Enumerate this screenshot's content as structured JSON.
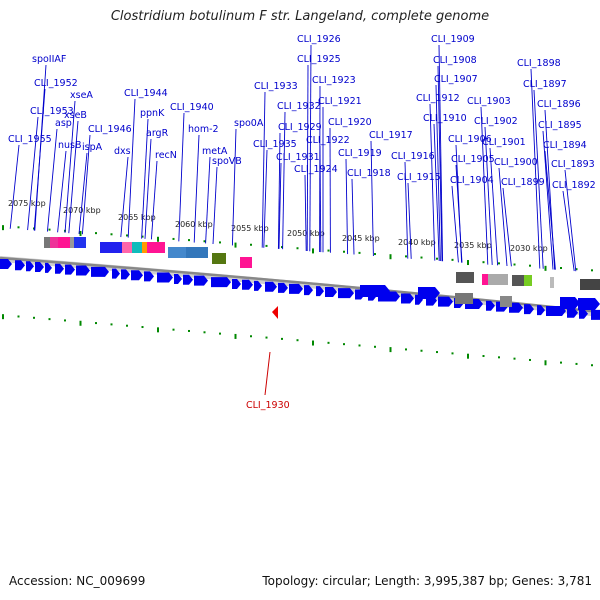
{
  "title": "Clostridium botulinum F str. Langeland, complete genome",
  "footer": {
    "accession": "Accession: NC_009699",
    "topology": "Topology: circular; Length: 3,995,387 bp; Genes: 3,781"
  },
  "colors": {
    "gene_label": "#0000cc",
    "highlight_label": "#cc0000",
    "forward_gene": "#0000ee",
    "tick": "#008800",
    "backbone": "#888888"
  },
  "scale_ticks": [
    "2075 kbp",
    "2070 kbp",
    "2065 kbp",
    "2060 kbp",
    "2055 kbp",
    "2050 kbp",
    "2045 kbp",
    "2040 kbp",
    "2035 kbp",
    "2030 kbp"
  ],
  "gene_labels": [
    {
      "text": "spoIIAF"
    },
    {
      "text": "CLI_1952"
    },
    {
      "text": "CLI_1953"
    },
    {
      "text": "xseA"
    },
    {
      "text": "asp"
    },
    {
      "text": "xseB"
    },
    {
      "text": "CLI_1955"
    },
    {
      "text": "nusB"
    },
    {
      "text": "ispA"
    },
    {
      "text": "CLI_1946"
    },
    {
      "text": "dxs"
    },
    {
      "text": "CLI_1944"
    },
    {
      "text": "ppnK"
    },
    {
      "text": "argR"
    },
    {
      "text": "recN"
    },
    {
      "text": "CLI_1940"
    },
    {
      "text": "hom-2"
    },
    {
      "text": "metA"
    },
    {
      "text": "spoVB"
    },
    {
      "text": "spo0A"
    },
    {
      "text": "CLI_1935"
    },
    {
      "text": "CLI_1933"
    },
    {
      "text": "CLI_1932"
    },
    {
      "text": "CLI_1931"
    },
    {
      "text": "CLI_1929"
    },
    {
      "text": "CLI_1926"
    },
    {
      "text": "CLI_1925"
    },
    {
      "text": "CLI_1923"
    },
    {
      "text": "CLI_1921"
    },
    {
      "text": "CLI_1920"
    },
    {
      "text": "CLI_1922"
    },
    {
      "text": "CLI_1924"
    },
    {
      "text": "CLI_1919"
    },
    {
      "text": "CLI_1918"
    },
    {
      "text": "CLI_1917"
    },
    {
      "text": "CLI_1916"
    },
    {
      "text": "CLI_1915"
    },
    {
      "text": "CLI_1909"
    },
    {
      "text": "CLI_1908"
    },
    {
      "text": "CLI_1907"
    },
    {
      "text": "CLI_1912"
    },
    {
      "text": "CLI_1910"
    },
    {
      "text": "CLI_1906"
    },
    {
      "text": "CLI_1905"
    },
    {
      "text": "CLI_1904"
    },
    {
      "text": "CLI_1903"
    },
    {
      "text": "CLI_1902"
    },
    {
      "text": "CLI_1901"
    },
    {
      "text": "CLI_1900"
    },
    {
      "text": "CLI_1899"
    },
    {
      "text": "CLI_1898"
    },
    {
      "text": "CLI_1897"
    },
    {
      "text": "CLI_1896"
    },
    {
      "text": "CLI_1895"
    },
    {
      "text": "CLI_1894"
    },
    {
      "text": "CLI_1893"
    },
    {
      "text": "CLI_1892"
    }
  ],
  "highlight_label": {
    "text": "CLI_1930"
  }
}
